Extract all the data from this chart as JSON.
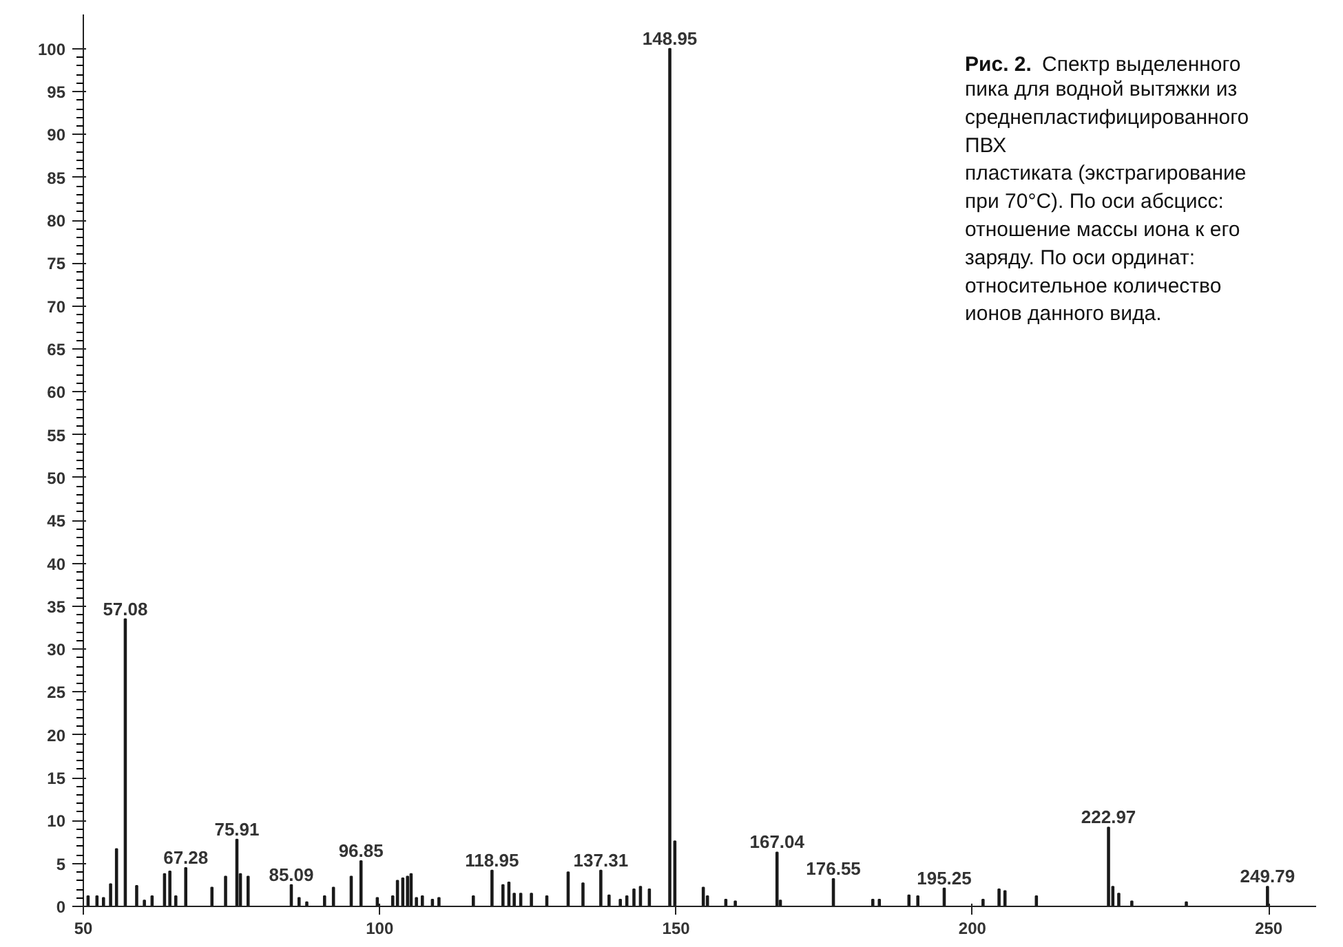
{
  "chart_data": {
    "type": "bar",
    "x": [
      50.8,
      52.3,
      53.4,
      54.6,
      55.6,
      57.08,
      59.0,
      60.3,
      61.6,
      63.7,
      64.6,
      65.6,
      67.28,
      71.7,
      74.0,
      75.91,
      76.5,
      77.8,
      85.09,
      86.4,
      87.7,
      90.7,
      92.2,
      95.2,
      96.85,
      99.6,
      102.2,
      103.0,
      103.9,
      104.7,
      105.3,
      106.2,
      107.2,
      108.9,
      110.0,
      115.8,
      118.95,
      120.8,
      121.8,
      122.7,
      123.8,
      125.6,
      128.2,
      131.8,
      134.3,
      137.31,
      138.7,
      140.6,
      141.7,
      142.9,
      144.0,
      145.5,
      148.95,
      149.8,
      154.6,
      155.3,
      158.4,
      160.0,
      167.04,
      167.6,
      176.55,
      183.2,
      184.3,
      189.3,
      190.8,
      195.25,
      201.8,
      204.5,
      205.5,
      210.8,
      222.97,
      223.7,
      224.7,
      226.9,
      236.1,
      249.79
    ],
    "values": [
      1.2,
      1.2,
      1.0,
      2.6,
      6.7,
      33.5,
      2.4,
      0.7,
      1.2,
      3.8,
      4.1,
      1.2,
      4.5,
      2.2,
      3.5,
      7.8,
      3.8,
      3.5,
      2.5,
      1.0,
      0.5,
      1.2,
      2.2,
      3.5,
      5.3,
      1.0,
      1.2,
      3.0,
      3.3,
      3.5,
      3.8,
      1.0,
      1.2,
      0.8,
      1.0,
      1.2,
      4.2,
      2.5,
      2.8,
      1.5,
      1.5,
      1.5,
      1.2,
      4.0,
      2.7,
      4.2,
      1.3,
      0.8,
      1.2,
      2.0,
      2.3,
      2.0,
      100,
      7.6,
      2.2,
      1.2,
      0.8,
      0.6,
      6.3,
      0.7,
      3.2,
      0.8,
      0.8,
      1.3,
      1.2,
      2.1,
      0.8,
      2.0,
      1.8,
      1.2,
      9.2,
      2.3,
      1.5,
      0.6,
      0.5,
      2.3
    ],
    "color": "#1a1a1a",
    "xlim": [
      50,
      258
    ],
    "ylim": [
      0,
      104
    ],
    "xticks": [
      50,
      100,
      150,
      200,
      250
    ],
    "yticks": [
      0,
      5,
      10,
      15,
      20,
      25,
      30,
      35,
      40,
      45,
      50,
      55,
      60,
      65,
      70,
      75,
      80,
      85,
      90,
      95,
      100
    ],
    "grid": false,
    "annotations": [
      {
        "text": "57.08",
        "x": 57.08,
        "y": 33.5
      },
      {
        "text": "67.28",
        "x": 67.28,
        "y": 4.5
      },
      {
        "text": "75.91",
        "x": 75.91,
        "y": 7.8
      },
      {
        "text": "85.09",
        "x": 85.09,
        "y": 2.5
      },
      {
        "text": "96.85",
        "x": 96.85,
        "y": 5.3
      },
      {
        "text": "118.95",
        "x": 118.95,
        "y": 4.2
      },
      {
        "text": "137.31",
        "x": 137.31,
        "y": 4.2
      },
      {
        "text": "148.95",
        "x": 148.95,
        "y": 100
      },
      {
        "text": "167.04",
        "x": 167.04,
        "y": 6.3
      },
      {
        "text": "176.55",
        "x": 176.55,
        "y": 3.2
      },
      {
        "text": "195.25",
        "x": 195.25,
        "y": 2.1
      },
      {
        "text": "222.97",
        "x": 222.97,
        "y": 9.2
      },
      {
        "text": "249.79",
        "x": 249.79,
        "y": 2.3
      },
      "Рис. 2.",
      "Спектр выделенного\nпика для водной вытяжки из\nсреднепластифицированного\nПВХ\nпластиката (экстрагирование\nпри 70°C). По оси абсцисс:\nотношение массы иона к его\nзаряду. По оси ординат:\nотносительное количество\nионов данного вида."
    ]
  }
}
